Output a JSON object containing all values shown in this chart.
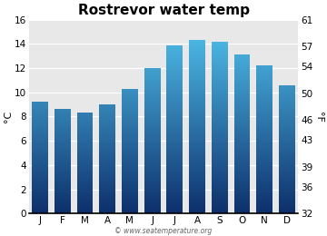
{
  "title": "Rostrevor water temp",
  "months": [
    "J",
    "F",
    "M",
    "A",
    "M",
    "J",
    "J",
    "A",
    "S",
    "O",
    "N",
    "D"
  ],
  "values_c": [
    9.2,
    8.6,
    8.3,
    9.0,
    10.3,
    12.0,
    13.9,
    14.3,
    14.2,
    13.1,
    12.2,
    10.6
  ],
  "ylim_c": [
    0,
    16
  ],
  "yticks_c": [
    0,
    2,
    4,
    6,
    8,
    10,
    12,
    14,
    16
  ],
  "yticks_f": [
    32,
    36,
    39,
    43,
    46,
    50,
    54,
    57,
    61
  ],
  "ylabel_left": "°C",
  "ylabel_right": "°F",
  "color_bottom": "#0d2f6b",
  "color_top": "#52c5f0",
  "bg_color": "#e8e8e8",
  "watermark": "© www.seatemperature.org",
  "title_fontsize": 11,
  "tick_fontsize": 7.5,
  "label_fontsize": 8,
  "bar_width": 0.72
}
